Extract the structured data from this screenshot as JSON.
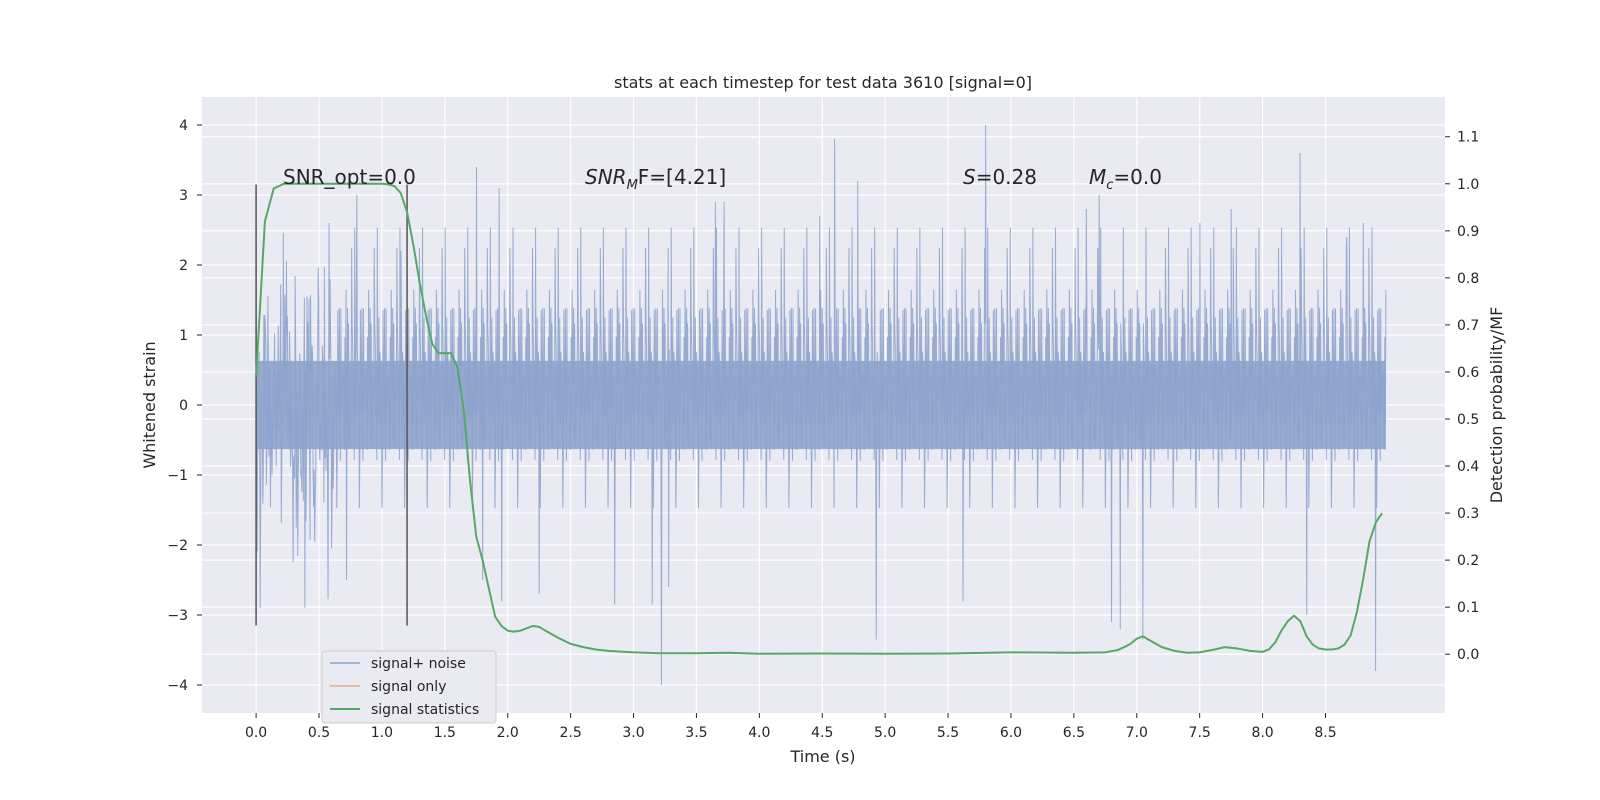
{
  "chart_data": {
    "type": "line",
    "title": "stats at each timestep for test data 3610 [signal=0]",
    "xlabel": "Time (s)",
    "ylabel": "Whitened strain",
    "y2label": "Detection probability/MF",
    "xlim": [
      -0.43,
      9.45
    ],
    "ylim": [
      -4.4,
      4.4
    ],
    "y2lim": [
      -0.125,
      1.1845
    ],
    "xticks": [
      0.0,
      0.5,
      1.0,
      1.5,
      2.0,
      2.5,
      3.0,
      3.5,
      4.0,
      4.5,
      5.0,
      5.5,
      6.0,
      6.5,
      7.0,
      7.5,
      8.0,
      8.5
    ],
    "xtick_labels": [
      "0.0",
      "0.5",
      "1.0",
      "1.5",
      "2.0",
      "2.5",
      "3.0",
      "3.5",
      "4.0",
      "4.5",
      "5.0",
      "5.5",
      "6.0",
      "6.5",
      "7.0",
      "7.5",
      "8.0",
      "8.5"
    ],
    "yticks": [
      4,
      3,
      2,
      1,
      0,
      -1,
      -2,
      -3,
      -4
    ],
    "ytick_labels": [
      "4",
      "3",
      "2",
      "1",
      "0",
      "−1",
      "−2",
      "−3",
      "−4"
    ],
    "y2ticks": [
      1.1,
      1.0,
      0.9,
      0.8,
      0.7,
      0.6,
      0.5,
      0.4,
      0.3,
      0.2,
      0.1,
      0.0
    ],
    "y2tick_labels": [
      "1.1",
      "1.0",
      "0.9",
      "0.8",
      "0.7",
      "0.6",
      "0.5",
      "0.4",
      "0.3",
      "0.2",
      "0.1",
      "0.0"
    ],
    "grid": true,
    "colors": {
      "background": "#eaeaf2",
      "grid": "#ffffff",
      "noise": "#8ea3cc",
      "signal_only": "#dd8452",
      "statistics": "#55a868",
      "vline": "#555555",
      "text": "#262626"
    },
    "noise": {
      "t_start": 0.0,
      "t_end": 8.98,
      "typical_abs": 1.2,
      "core_band": 0.63,
      "peaks": [
        {
          "t": 0.0,
          "y": -2.15
        },
        {
          "t": 0.0,
          "y": 2.25
        },
        {
          "t": 0.58,
          "y": 2.6
        },
        {
          "t": 0.72,
          "y": -2.5
        },
        {
          "t": 0.8,
          "y": 3.0
        },
        {
          "t": 1.15,
          "y": 2.2
        },
        {
          "t": 1.75,
          "y": 3.4
        },
        {
          "t": 1.8,
          "y": -2.5
        },
        {
          "t": 1.93,
          "y": 3.1
        },
        {
          "t": 1.95,
          "y": -2.8
        },
        {
          "t": 2.25,
          "y": -2.7
        },
        {
          "t": 2.85,
          "y": -2.85
        },
        {
          "t": 3.15,
          "y": -2.85
        },
        {
          "t": 3.22,
          "y": -4.0
        },
        {
          "t": 3.28,
          "y": -2.6
        },
        {
          "t": 3.65,
          "y": 2.9
        },
        {
          "t": 3.72,
          "y": 2.9
        },
        {
          "t": 4.48,
          "y": 2.7
        },
        {
          "t": 4.6,
          "y": 3.8
        },
        {
          "t": 4.78,
          "y": 3.2
        },
        {
          "t": 4.93,
          "y": -3.35
        },
        {
          "t": 5.62,
          "y": -2.8
        },
        {
          "t": 5.8,
          "y": 4.0
        },
        {
          "t": 6.6,
          "y": 2.8
        },
        {
          "t": 6.7,
          "y": 3.0
        },
        {
          "t": 6.8,
          "y": -3.1
        },
        {
          "t": 6.87,
          "y": -3.2
        },
        {
          "t": 7.05,
          "y": -3.35
        },
        {
          "t": 7.5,
          "y": 2.6
        },
        {
          "t": 7.75,
          "y": 2.8
        },
        {
          "t": 8.3,
          "y": 3.6
        },
        {
          "t": 8.35,
          "y": -3.0
        },
        {
          "t": 8.67,
          "y": 2.4
        },
        {
          "t": 8.8,
          "y": 2.6
        },
        {
          "t": 8.9,
          "y": -3.8
        }
      ]
    },
    "series": [
      {
        "name": "signal+ noise",
        "role": "noise",
        "axis": "left"
      },
      {
        "name": "signal only",
        "role": "signal_only",
        "axis": "left",
        "x": [],
        "values": []
      },
      {
        "name": "signal statistics",
        "role": "statistics",
        "axis": "right",
        "x": [
          0.0,
          0.07,
          0.14,
          0.22,
          0.35,
          0.5,
          0.7,
          0.9,
          1.0,
          1.05,
          1.1,
          1.15,
          1.2,
          1.25,
          1.3,
          1.35,
          1.4,
          1.45,
          1.5,
          1.55,
          1.6,
          1.65,
          1.7,
          1.75,
          1.8,
          1.85,
          1.9,
          1.95,
          2.0,
          2.05,
          2.1,
          2.15,
          2.2,
          2.25,
          2.3,
          2.4,
          2.5,
          2.6,
          2.7,
          2.8,
          3.0,
          3.2,
          3.5,
          3.75,
          4.0,
          4.5,
          5.0,
          5.5,
          6.0,
          6.5,
          6.75,
          6.85,
          6.9,
          6.95,
          7.0,
          7.05,
          7.1,
          7.2,
          7.3,
          7.4,
          7.5,
          7.6,
          7.7,
          7.8,
          7.9,
          8.0,
          8.05,
          8.1,
          8.15,
          8.2,
          8.25,
          8.3,
          8.35,
          8.4,
          8.45,
          8.5,
          8.55,
          8.6,
          8.65,
          8.7,
          8.75,
          8.8,
          8.85,
          8.9,
          8.95
        ],
        "values": [
          0.59,
          0.92,
          0.99,
          1.0,
          1.0,
          1.0,
          1.0,
          1.0,
          1.0,
          0.999,
          0.995,
          0.98,
          0.94,
          0.87,
          0.79,
          0.72,
          0.66,
          0.64,
          0.64,
          0.64,
          0.61,
          0.52,
          0.37,
          0.25,
          0.2,
          0.14,
          0.08,
          0.06,
          0.05,
          0.048,
          0.05,
          0.055,
          0.06,
          0.058,
          0.05,
          0.035,
          0.022,
          0.015,
          0.01,
          0.007,
          0.004,
          0.002,
          0.002,
          0.003,
          0.001,
          0.0015,
          0.001,
          0.0015,
          0.004,
          0.003,
          0.004,
          0.009,
          0.015,
          0.022,
          0.033,
          0.038,
          0.03,
          0.015,
          0.007,
          0.003,
          0.004,
          0.009,
          0.015,
          0.012,
          0.007,
          0.005,
          0.01,
          0.025,
          0.05,
          0.07,
          0.082,
          0.07,
          0.038,
          0.02,
          0.012,
          0.01,
          0.01,
          0.012,
          0.02,
          0.04,
          0.09,
          0.16,
          0.24,
          0.28,
          0.3
        ]
      }
    ],
    "vlines": [
      {
        "t": 0.0,
        "y_from": -3.15,
        "y_to": 3.15
      },
      {
        "t": 1.2,
        "y_from": -3.15,
        "y_to": 3.15
      }
    ],
    "annotations": [
      {
        "id": "snr-opt",
        "text": "SNR_opt=0.0",
        "t": 0.2,
        "y": 3.2
      },
      {
        "id": "snr-mf",
        "base": "SNR",
        "sub": "M",
        "rest": "F=[4.21]",
        "t": 2.6,
        "y": 3.2
      },
      {
        "id": "s-stat",
        "base": "S",
        "rest": "=0.28",
        "t": 5.6,
        "y": 3.2
      },
      {
        "id": "mc",
        "base": "M",
        "sub": "c",
        "rest": "=0.0",
        "t": 6.6,
        "y": 3.2
      }
    ],
    "legend": {
      "placement": "lower-left",
      "entries": [
        "signal+ noise",
        "signal only",
        "signal statistics"
      ]
    }
  }
}
